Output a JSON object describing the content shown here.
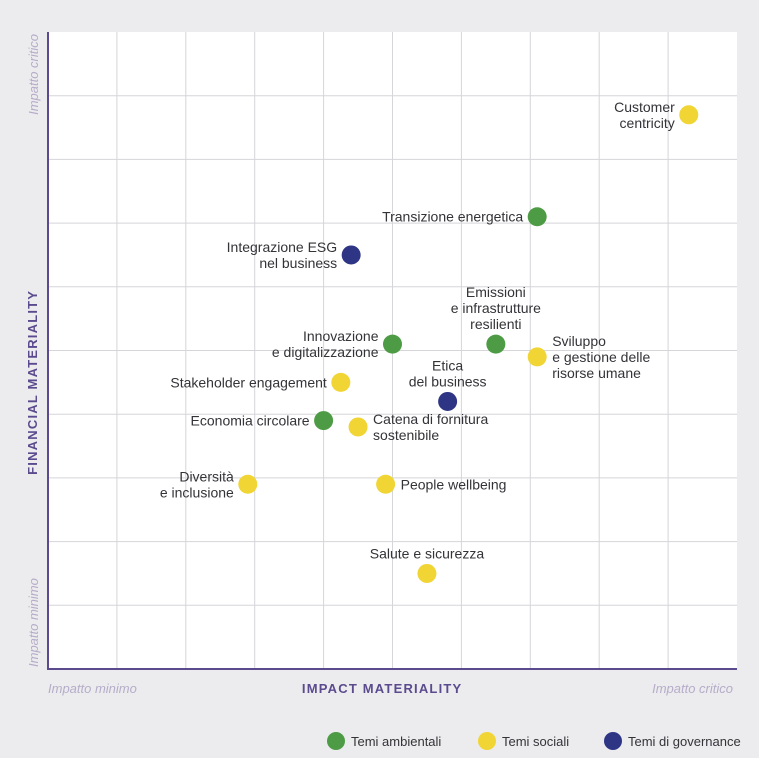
{
  "chart_data": {
    "type": "scatter",
    "xlabel": "IMPACT MATERIALITY",
    "ylabel": "FINANCIAL MATERIALITY",
    "x_min_label": "Impatto minimo",
    "x_max_label": "Impatto critico",
    "y_min_label": "Impatto minimo",
    "y_max_label": "Impatto critico",
    "xlim": [
      0,
      10
    ],
    "ylim": [
      0,
      10
    ],
    "grid": true,
    "legend_position": "bottom-right",
    "colors": {
      "axis": "#5b4a8e",
      "hint": "#b6acc9",
      "grid": "#d5d5da",
      "plot_bg": "#ffffff",
      "page_bg": "#ececee"
    },
    "series": [
      {
        "name": "Temi ambientali",
        "color": "#4e9b45",
        "points": [
          {
            "x": 7.1,
            "y": 7.1,
            "label": [
              "Transizione energetica"
            ],
            "anchor": "left"
          },
          {
            "x": 5.0,
            "y": 5.1,
            "label": [
              "Innovazione",
              "e digitalizzazione"
            ],
            "anchor": "left"
          },
          {
            "x": 6.5,
            "y": 5.1,
            "label": [
              "Emissioni",
              "e infrastrutture",
              "resilienti"
            ],
            "anchor": "above"
          },
          {
            "x": 4.0,
            "y": 3.9,
            "label": [
              "Economia circolare"
            ],
            "anchor": "left"
          }
        ]
      },
      {
        "name": "Temi sociali",
        "color": "#f0d535",
        "points": [
          {
            "x": 9.3,
            "y": 8.7,
            "label": [
              "Customer",
              "centricity"
            ],
            "anchor": "left"
          },
          {
            "x": 7.1,
            "y": 4.9,
            "label": [
              "Sviluppo",
              "e gestione delle",
              "risorse umane"
            ],
            "anchor": "right"
          },
          {
            "x": 4.25,
            "y": 4.5,
            "label": [
              "Stakeholder engagement"
            ],
            "anchor": "left"
          },
          {
            "x": 4.5,
            "y": 3.8,
            "label": [
              "Catena di fornitura",
              "sostenibile"
            ],
            "anchor": "right"
          },
          {
            "x": 2.9,
            "y": 2.9,
            "label": [
              "Diversità",
              "e inclusione"
            ],
            "anchor": "left"
          },
          {
            "x": 4.9,
            "y": 2.9,
            "label": [
              "People wellbeing"
            ],
            "anchor": "right"
          },
          {
            "x": 5.5,
            "y": 1.5,
            "label": [
              "Salute e sicurezza"
            ],
            "anchor": "above"
          }
        ]
      },
      {
        "name": "Temi di governance",
        "color": "#2f3585",
        "points": [
          {
            "x": 4.4,
            "y": 6.5,
            "label": [
              "Integrazione ESG",
              "nel business"
            ],
            "anchor": "left"
          },
          {
            "x": 5.8,
            "y": 4.2,
            "label": [
              "Etica",
              "del business"
            ],
            "anchor": "above"
          }
        ]
      }
    ]
  }
}
